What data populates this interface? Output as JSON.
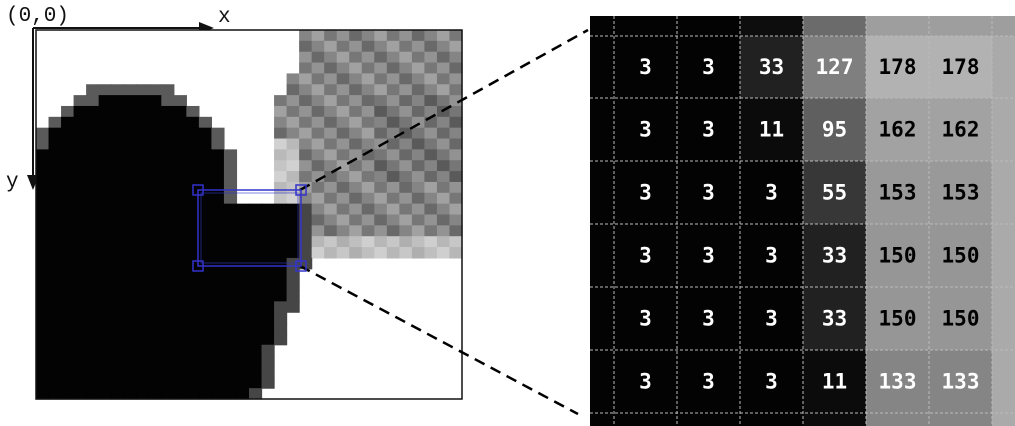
{
  "labels": {
    "origin": "(0,0)",
    "x_axis": "x",
    "y_axis": "y"
  },
  "zoom_grid": {
    "rows": [
      [
        3,
        3,
        33,
        127,
        178,
        178
      ],
      [
        3,
        3,
        11,
        95,
        162,
        162
      ],
      [
        3,
        3,
        3,
        55,
        153,
        153
      ],
      [
        3,
        3,
        3,
        33,
        150,
        150
      ],
      [
        3,
        3,
        3,
        33,
        150,
        150
      ],
      [
        3,
        3,
        3,
        11,
        133,
        133
      ]
    ]
  },
  "colors": {
    "selection": "#3333cc",
    "dashed_leader": "#000000",
    "grid_lines": "#bbbbbb",
    "dark_text": "#ffffff",
    "light_text": "#000000"
  }
}
